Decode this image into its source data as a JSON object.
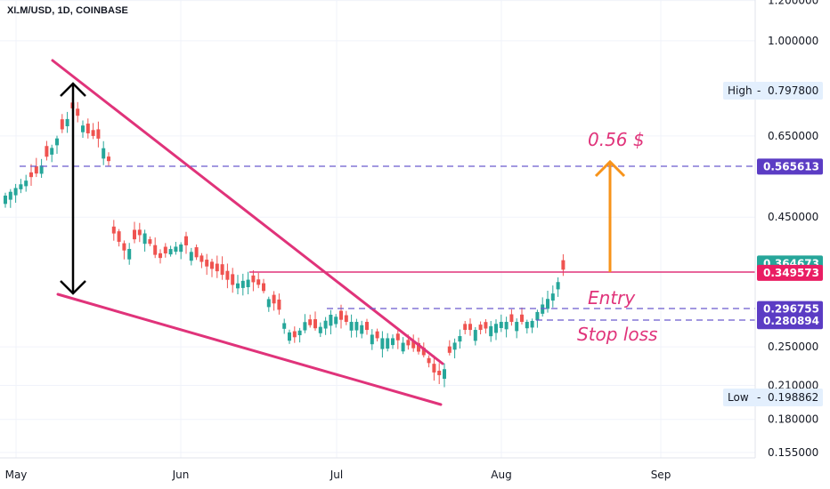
{
  "header": {
    "symbol": "XLM/USD, 1D, COINBASE"
  },
  "colors": {
    "up": "#26a69a",
    "down": "#ef5350",
    "wedge": "#e0337a",
    "entry_line": "#e0337a",
    "dashed": "#6a5acd",
    "arrow_orange": "#f7931a",
    "tag_purple": "#5b3cc4",
    "tag_green": "#26a69a",
    "tag_red": "#e91e63",
    "marker_bg": "#e3effd"
  },
  "chart_data": {
    "type": "candlestick",
    "y_scale": "log",
    "y_ticks": [
      "1.200000",
      "1.000000",
      "0.650000",
      "0.450000",
      "0.250000",
      "0.210000",
      "0.180000",
      "0.155000"
    ],
    "x_ticks": [
      "May",
      "Jun",
      "Jul",
      "Aug",
      "Sep"
    ],
    "price_tags": [
      {
        "label": "0.565613",
        "color": "purple"
      },
      {
        "label": "0.364673",
        "color": "green"
      },
      {
        "label": "0.349573",
        "color": "red"
      },
      {
        "label": "0.296755",
        "color": "purple"
      },
      {
        "label": "0.280894",
        "color": "purple"
      }
    ],
    "markers": [
      {
        "name": "High",
        "label": "0.797800"
      },
      {
        "name": "Low",
        "label": "0.198862"
      }
    ],
    "annotations": {
      "target": "0.56 $",
      "entry": "Entry",
      "stop": "Stop loss"
    }
  }
}
